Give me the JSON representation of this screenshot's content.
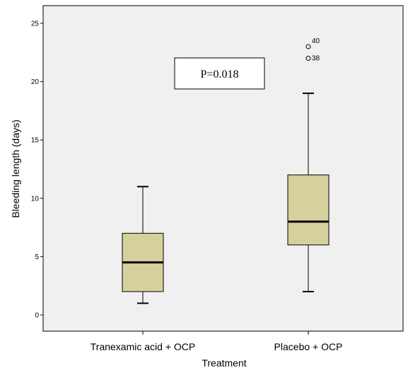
{
  "chart_data": {
    "type": "box",
    "xlabel": "Treatment",
    "ylabel": "Bleeding length (days)",
    "ylim": [
      -1.5,
      26
    ],
    "yticks": [
      0,
      5,
      10,
      15,
      20,
      25
    ],
    "categories": [
      "Tranexamic acid + OCP",
      "Placebo + OCP"
    ],
    "boxes": [
      {
        "category": "Tranexamic acid + OCP",
        "min": 1,
        "q1": 2,
        "median": 4.5,
        "q3": 7,
        "max": 11,
        "outliers": []
      },
      {
        "category": "Placebo + OCP",
        "min": 2,
        "q1": 6,
        "median": 8,
        "q3": 12,
        "max": 19,
        "outliers": [
          {
            "value": 23,
            "label": "40"
          },
          {
            "value": 22,
            "label": "38"
          }
        ]
      }
    ],
    "annotation": "P=0.018",
    "colors": {
      "box_fill": "#d6d09c",
      "plot_background": "#f0f0f0",
      "stroke": "#000000",
      "median": "#000000"
    }
  }
}
